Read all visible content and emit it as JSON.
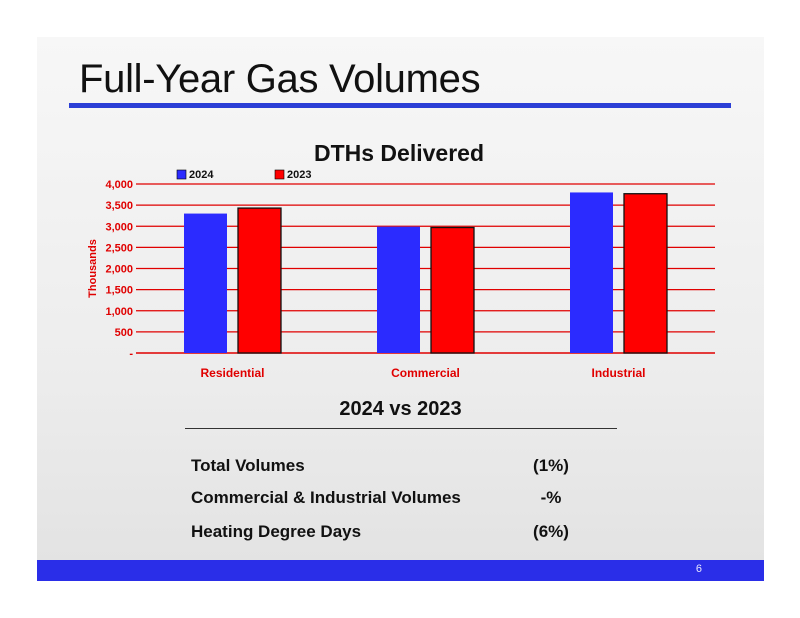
{
  "slide": {
    "title": "Full-Year Gas Volumes",
    "page_number": "6",
    "accent_color": "#2b3fd6",
    "footer_color": "#2a2ee8"
  },
  "chart_data": {
    "type": "bar",
    "title": "DTHs Delivered",
    "ylabel": "Thousands",
    "xlabel": "",
    "categories": [
      "Residential",
      "Commercial",
      "Industrial"
    ],
    "series": [
      {
        "name": "2024",
        "values": [
          3300,
          2990,
          3800
        ],
        "color": "#2b2bff"
      },
      {
        "name": "2023",
        "values": [
          3430,
          2970,
          3770
        ],
        "color": "#ff0000"
      }
    ],
    "ylim": [
      0,
      4000
    ],
    "yticks": [
      0,
      500,
      1000,
      1500,
      2000,
      2500,
      3000,
      3500,
      4000
    ],
    "ytick_labels": [
      "-",
      "500",
      "1,000",
      "1,500",
      "2,000",
      "2,500",
      "3,000",
      "3,500",
      "4,000"
    ],
    "grid": true,
    "legend": "top-left",
    "axis_color": "#e00000"
  },
  "comparison": {
    "title": "2024 vs 2023",
    "rows": [
      {
        "label": "Total Volumes",
        "value": "(1%)"
      },
      {
        "label": "Commercial & Industrial Volumes",
        "value": "-%"
      },
      {
        "label": "Heating Degree Days",
        "value": "(6%)"
      }
    ]
  }
}
